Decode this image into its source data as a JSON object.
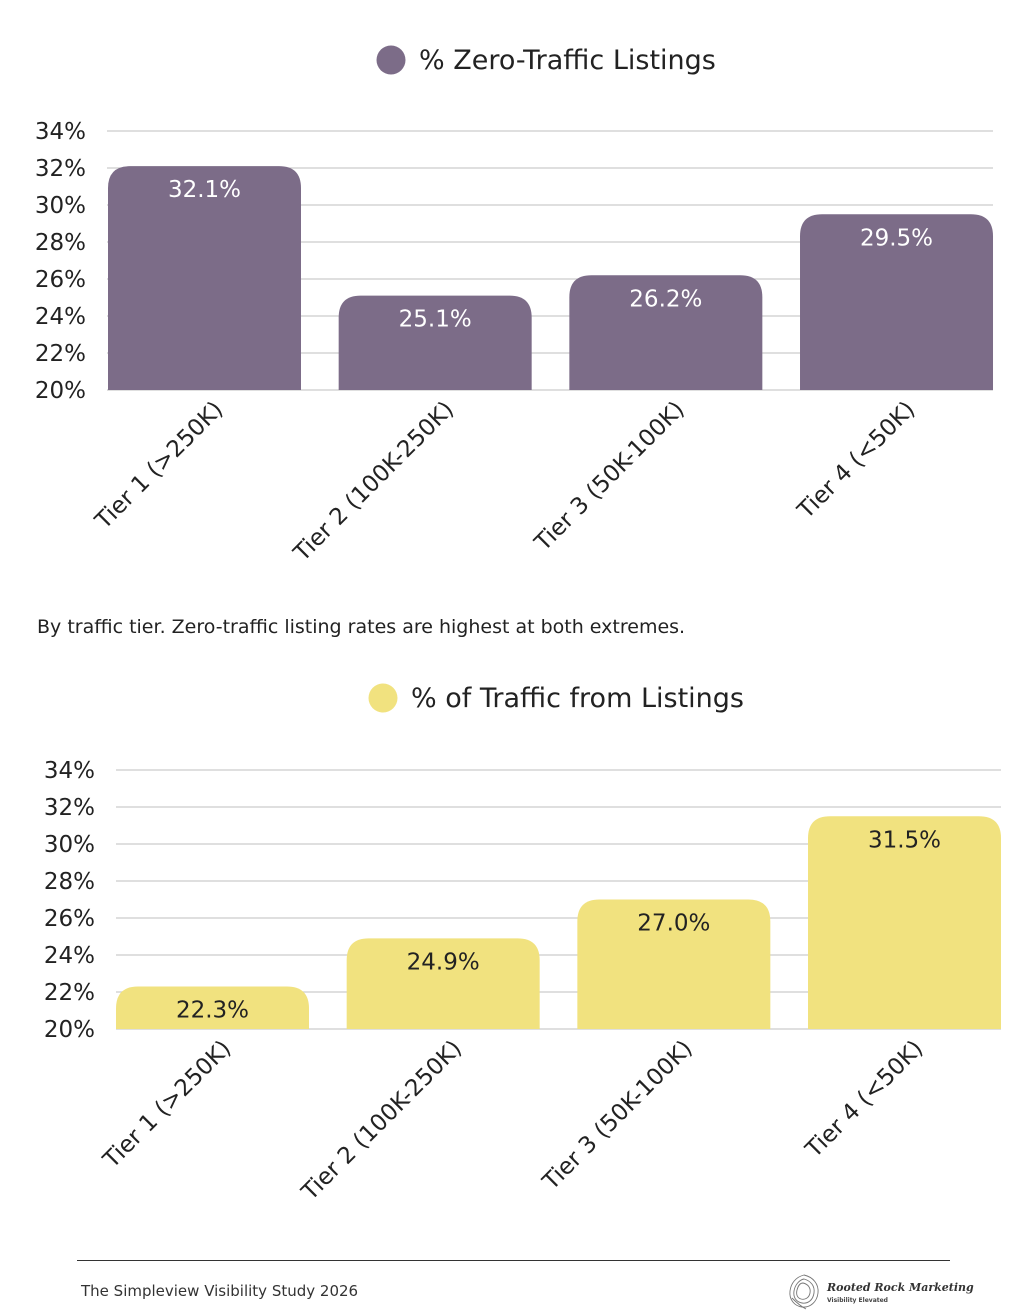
{
  "chart_data": [
    {
      "type": "bar",
      "legend": "% Zero-Traffic Listings",
      "categories": [
        "Tier 1 (>250K)",
        "Tier 2 (100K-250K)",
        "Tier 3 (50K-100K)",
        "Tier 4 (<50K)"
      ],
      "values": [
        32.1,
        25.1,
        26.2,
        29.5
      ],
      "value_labels": [
        "32.1%",
        "25.1%",
        "26.2%",
        "29.5%"
      ],
      "ylim": [
        20,
        34
      ],
      "yticks": [
        "20%",
        "22%",
        "24%",
        "26%",
        "28%",
        "30%",
        "32%",
        "34%"
      ],
      "grid": true,
      "legend_position": "top-center",
      "bar_color": "#7c6c88",
      "label_color": "#ffffff"
    },
    {
      "type": "bar",
      "legend": "% of Traffic from Listings",
      "categories": [
        "Tier 1 (>250K)",
        "Tier 2 (100K-250K)",
        "Tier 3 (50K-100K)",
        "Tier 4 (<50K)"
      ],
      "values": [
        22.3,
        24.9,
        27.0,
        31.5
      ],
      "value_labels": [
        "22.3%",
        "24.9%",
        "27.0%",
        "31.5%"
      ],
      "ylim": [
        20,
        34
      ],
      "yticks": [
        "20%",
        "22%",
        "24%",
        "26%",
        "28%",
        "30%",
        "32%",
        "34%"
      ],
      "grid": true,
      "legend_position": "top-center",
      "bar_color": "#f1e27f",
      "label_color": "#222222"
    }
  ],
  "caption": "By traffic tier. Zero-traffic listing rates are highest at both extremes.",
  "footer": {
    "study": "The Simpleview Visibility Study 2026",
    "brand": "Rooted Rock Marketing",
    "tagline": "Visibility Elevated"
  }
}
